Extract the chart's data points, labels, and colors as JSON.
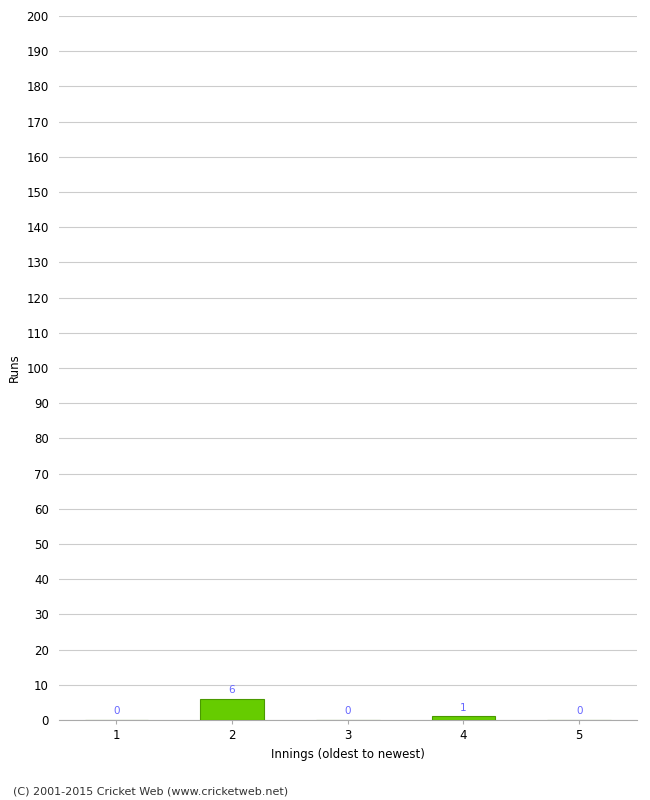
{
  "xlabel": "Innings (oldest to newest)",
  "ylabel": "Runs",
  "innings": [
    1,
    2,
    3,
    4,
    5
  ],
  "values": [
    0,
    6,
    0,
    1,
    0
  ],
  "bar_color": "#66cc00",
  "bar_edge_color": "#4a9900",
  "ylim": [
    0,
    200
  ],
  "yticks": [
    0,
    10,
    20,
    30,
    40,
    50,
    60,
    70,
    80,
    90,
    100,
    110,
    120,
    130,
    140,
    150,
    160,
    170,
    180,
    190,
    200
  ],
  "xticks": [
    1,
    2,
    3,
    4,
    5
  ],
  "annotation_color": "#6666ff",
  "annotation_fontsize": 7.5,
  "footer": "(C) 2001-2015 Cricket Web (www.cricketweb.net)",
  "footer_fontsize": 8,
  "grid_color": "#cccccc",
  "background_color": "#ffffff",
  "bar_width": 0.55,
  "tick_fontsize": 8.5,
  "label_fontsize": 8.5
}
